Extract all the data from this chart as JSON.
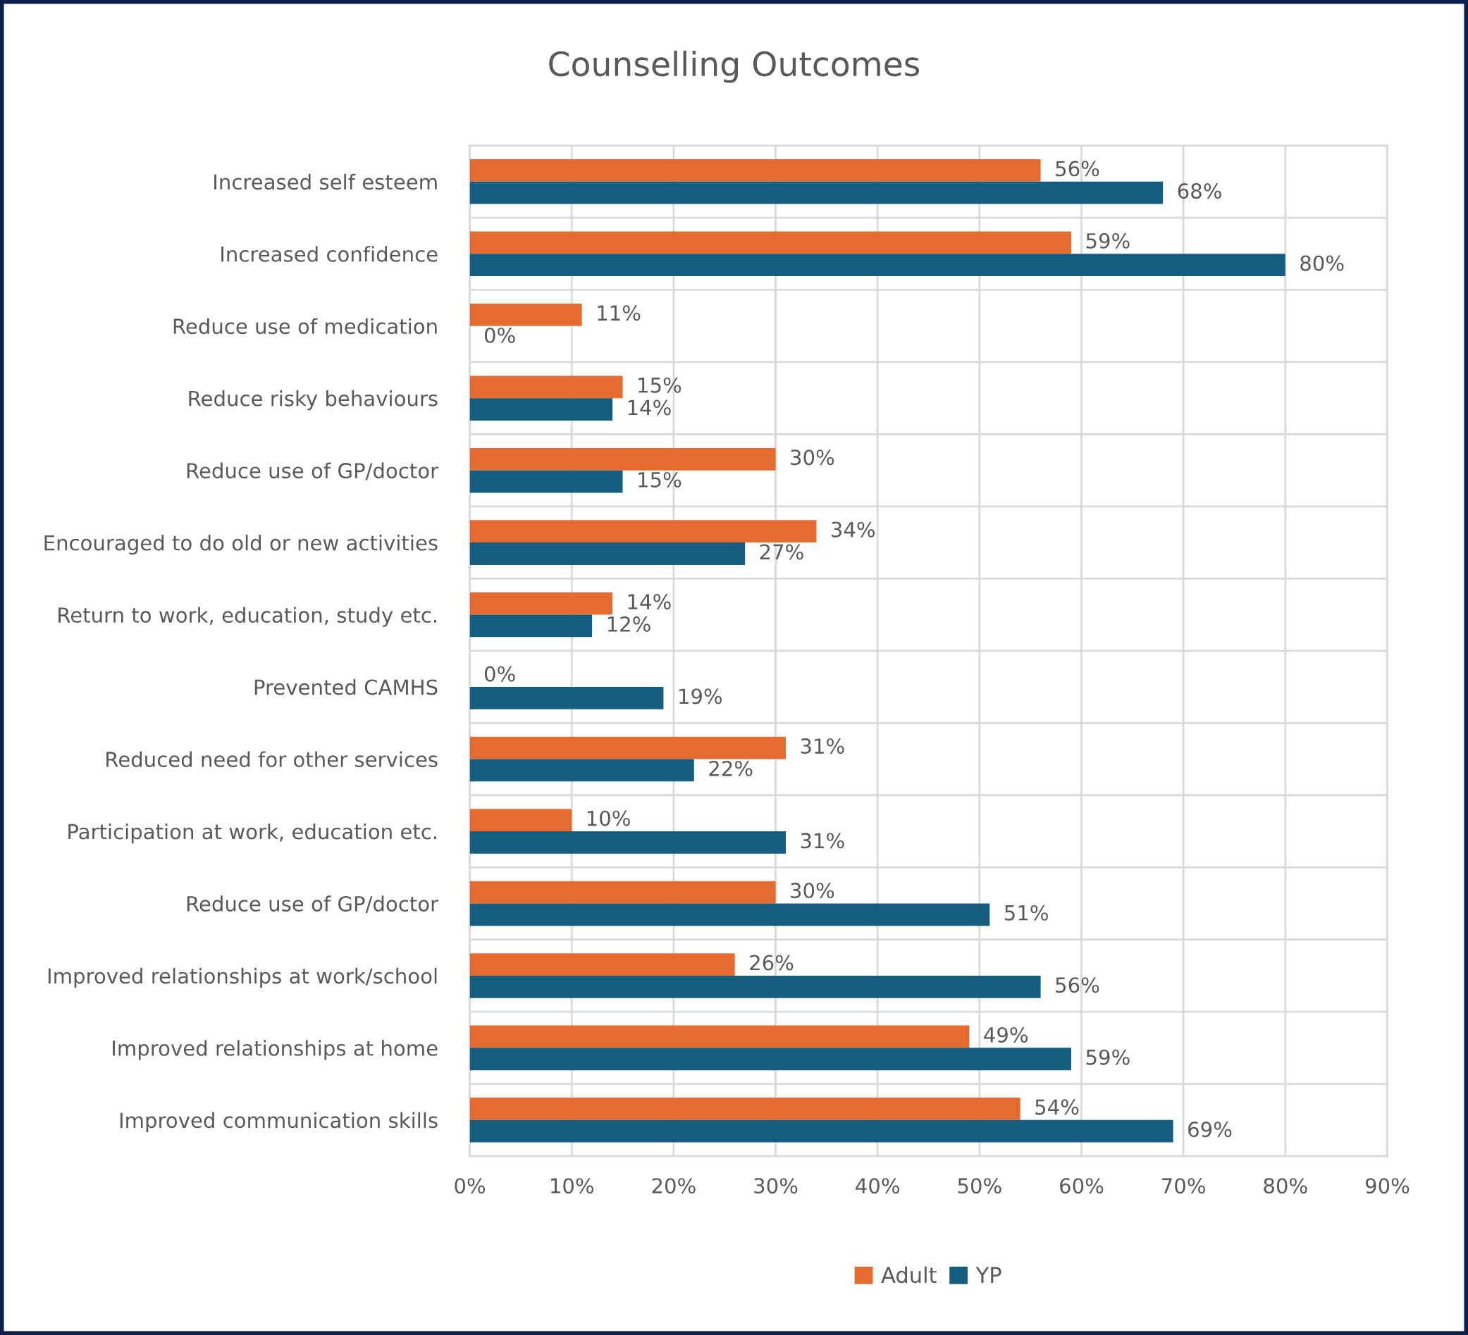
{
  "chart_data": {
    "type": "bar",
    "orientation": "horizontal",
    "title": "Counselling Outcomes",
    "categories": [
      "Increased self esteem",
      "Increased confidence",
      "Reduce use of medication",
      "Reduce risky behaviours",
      "Reduce use of GP/doctor",
      "Encouraged to do old or new activities",
      "Return to work, education, study etc.",
      "Prevented CAMHS",
      "Reduced need for other services",
      "Participation at work, education etc.",
      "Reduce use of GP/doctor",
      "Improved relationships at work/school",
      "Improved relationships at home",
      "Improved communication skills"
    ],
    "series": [
      {
        "name": "Adult",
        "color": "#e46c32",
        "values": [
          56,
          59,
          11,
          15,
          30,
          34,
          14,
          0,
          31,
          10,
          30,
          26,
          49,
          54
        ],
        "value_labels": [
          "56%",
          "59%",
          "11%",
          "15%",
          "30%",
          "34%",
          "14%",
          "0%",
          "31%",
          "10%",
          "30%",
          "26%",
          "49%",
          "54%"
        ]
      },
      {
        "name": "YP",
        "color": "#155e80",
        "values": [
          68,
          80,
          0,
          14,
          15,
          27,
          12,
          19,
          22,
          31,
          51,
          56,
          59,
          69
        ],
        "value_labels": [
          "68%",
          "80%",
          "0%",
          "14%",
          "15%",
          "27%",
          "12%",
          "19%",
          "22%",
          "31%",
          "51%",
          "56%",
          "59%",
          "69%"
        ]
      }
    ],
    "xlim": [
      0,
      90
    ],
    "xticks": [
      {
        "value": 0,
        "label": "0%"
      },
      {
        "value": 10,
        "label": "10%"
      },
      {
        "value": 20,
        "label": "20%"
      },
      {
        "value": 30,
        "label": "30%"
      },
      {
        "value": 40,
        "label": "40%"
      },
      {
        "value": 50,
        "label": "50%"
      },
      {
        "value": 60,
        "label": "60%"
      },
      {
        "value": 70,
        "label": "70%"
      },
      {
        "value": 80,
        "label": "80%"
      },
      {
        "value": 90,
        "label": "90%"
      }
    ],
    "grid": true,
    "legend": "bottom"
  }
}
